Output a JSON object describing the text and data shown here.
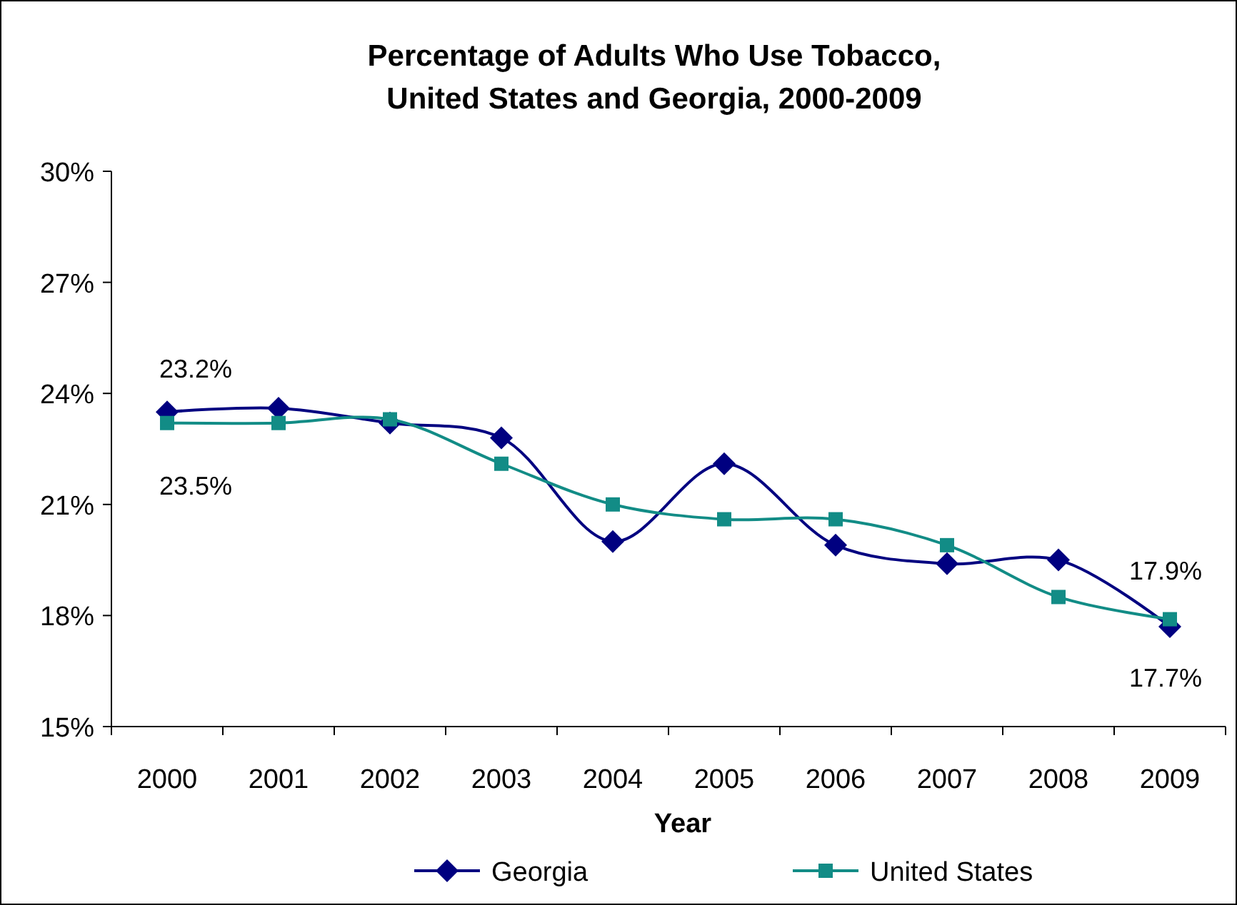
{
  "chart_data": {
    "type": "line",
    "title": "Percentage of Adults Who Use Tobacco,\nUnited States and Georgia, 2000-2009",
    "xlabel": "Year",
    "categories": [
      "2000",
      "2001",
      "2002",
      "2003",
      "2004",
      "2005",
      "2006",
      "2007",
      "2008",
      "2009"
    ],
    "series": [
      {
        "name": "Georgia",
        "color": "#000080",
        "marker": "diamond",
        "values": [
          23.5,
          23.6,
          23.2,
          22.8,
          20.0,
          22.1,
          19.9,
          19.4,
          19.5,
          17.7
        ],
        "value_labels": [
          "23.5%",
          null,
          null,
          null,
          null,
          null,
          null,
          null,
          null,
          "17.7%"
        ]
      },
      {
        "name": "United States",
        "color": "#128c86",
        "marker": "square",
        "values": [
          23.2,
          23.2,
          23.3,
          22.1,
          21.0,
          20.6,
          20.6,
          19.9,
          18.5,
          17.9
        ],
        "value_labels": [
          "23.2%",
          null,
          null,
          null,
          null,
          null,
          null,
          null,
          null,
          "17.9%"
        ]
      }
    ],
    "ylim": [
      15,
      30
    ],
    "yticks": [
      {
        "value": 15,
        "label": "15%"
      },
      {
        "value": 18,
        "label": "18%"
      },
      {
        "value": 21,
        "label": "21%"
      },
      {
        "value": 24,
        "label": "24%"
      },
      {
        "value": 27,
        "label": "27%"
      },
      {
        "value": 30,
        "label": "30%"
      }
    ],
    "grid": false,
    "legend": "bottom"
  }
}
